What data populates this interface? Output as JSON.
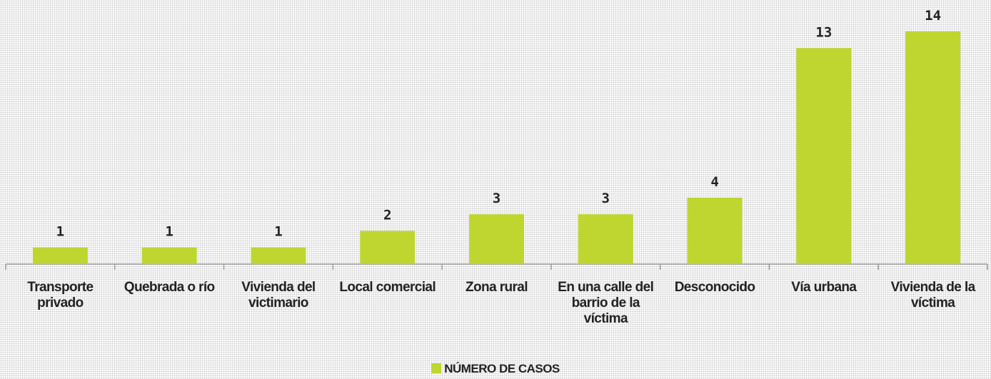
{
  "chart_data": {
    "type": "bar",
    "categories": [
      "Transporte privado",
      "Quebrada o río",
      "Vivienda del victimario",
      "Local comercial",
      "Zona rural",
      "En una calle del barrio de la víctima",
      "Desconocido",
      "Vía urbana",
      "Vivienda de la víctima"
    ],
    "series": [
      {
        "name": "NÚMERO DE CASOS",
        "color": "#bed62f",
        "values": [
          1,
          1,
          1,
          2,
          3,
          3,
          4,
          13,
          14
        ]
      }
    ],
    "legend": "bottom"
  }
}
